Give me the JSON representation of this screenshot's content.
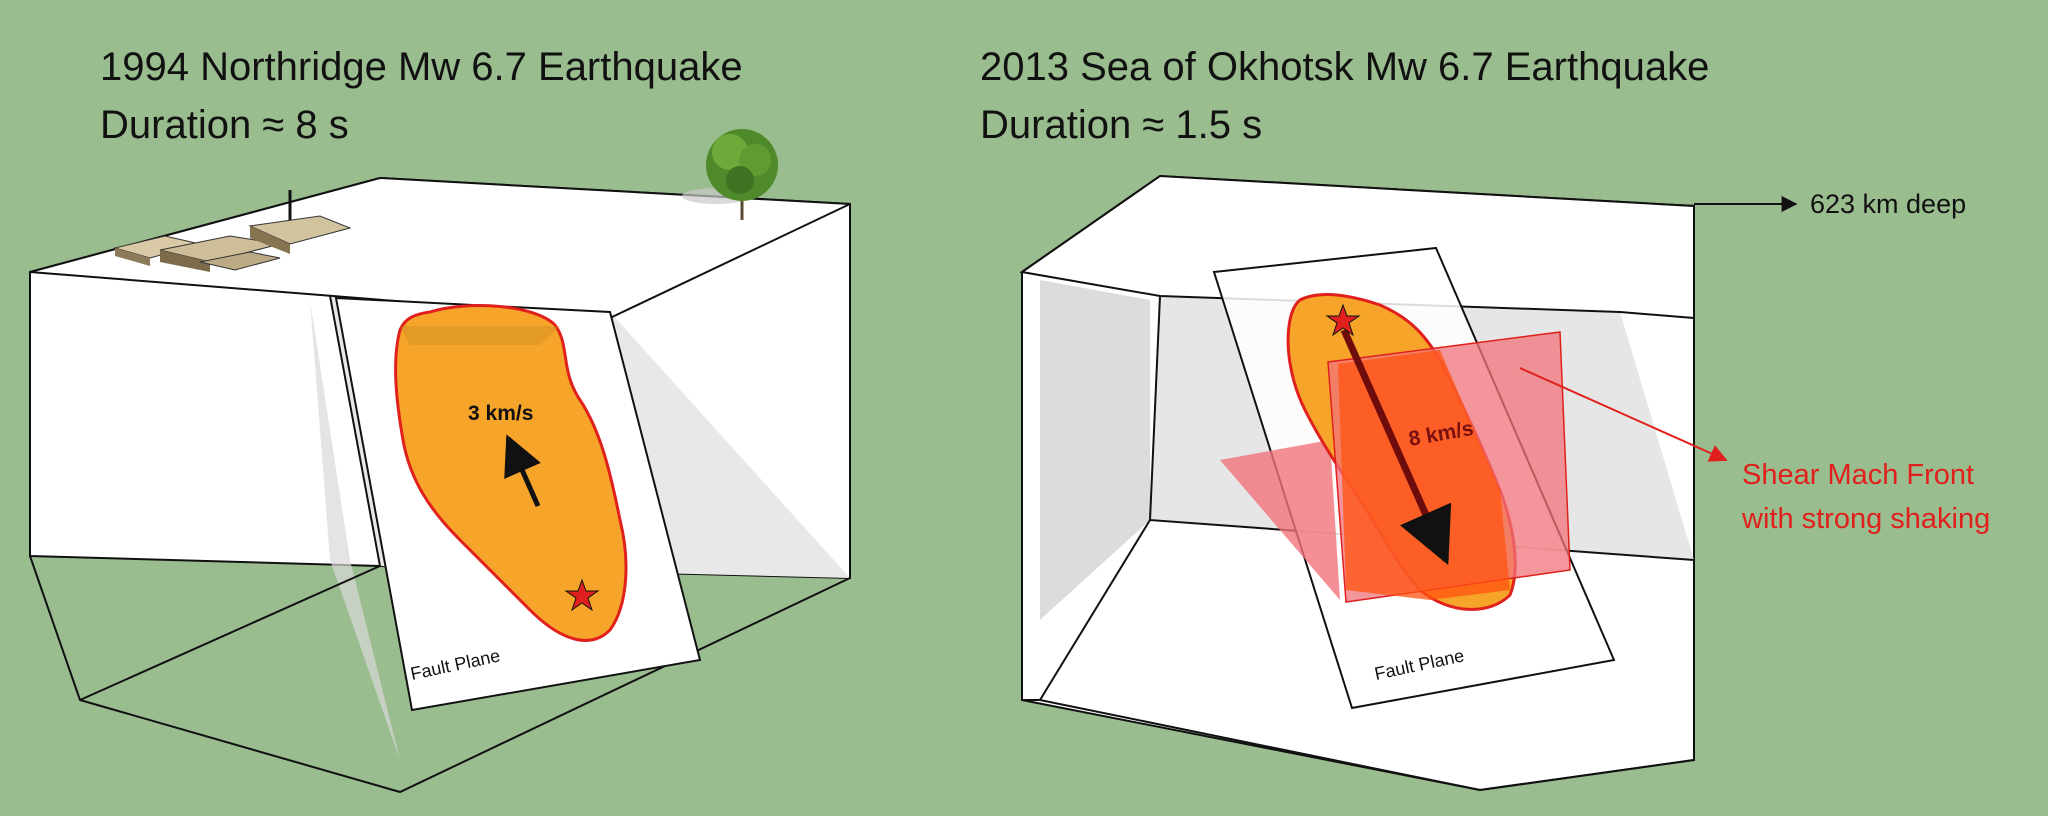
{
  "panels": [
    {
      "title_line1": "1994 Northridge Mw 6.7 Earthquake",
      "title_line2": "Duration ≈ 8 s",
      "velocity_label": "3 km/s",
      "fault_label": "Fault Plane"
    },
    {
      "title_line1": "2013 Sea of Okhotsk Mw 6.7 Earthquake",
      "title_line2": "Duration ≈ 1.5 s",
      "velocity_label": "8 km/s",
      "fault_label": "Fault Plane",
      "depth_label": "623 km deep",
      "mach_label_line1": "Shear Mach Front",
      "mach_label_line2": "with strong shaking"
    }
  ],
  "icons": [
    "building-icon",
    "tree-icon",
    "hypocenter-star-icon"
  ],
  "colors": {
    "background": "#9abd8f",
    "rupture_fill": "#f7a52a",
    "rupture_outline": "#e0201c",
    "mach_front": "#f0737a",
    "annotation_red": "#e0201c"
  }
}
